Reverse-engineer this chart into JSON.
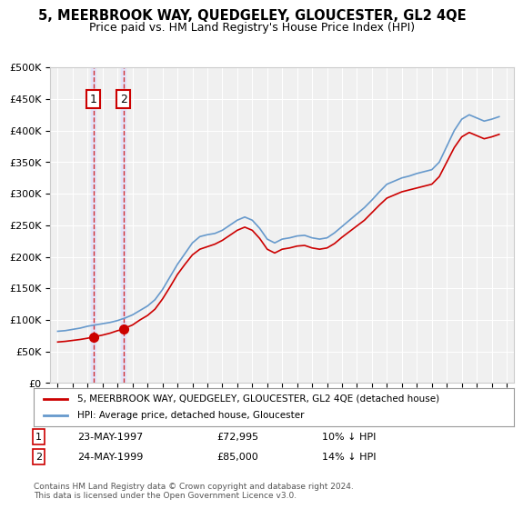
{
  "title": "5, MEERBROOK WAY, QUEDGELEY, GLOUCESTER, GL2 4QE",
  "subtitle": "Price paid vs. HM Land Registry's House Price Index (HPI)",
  "xlabel": "",
  "ylabel": "",
  "ylim": [
    0,
    500000
  ],
  "yticks": [
    0,
    50000,
    100000,
    150000,
    200000,
    250000,
    300000,
    350000,
    400000,
    450000,
    500000
  ],
  "background_color": "#ffffff",
  "plot_bg_color": "#f0f0f0",
  "legend_label_red": "5, MEERBROOK WAY, QUEDGELEY, GLOUCESTER, GL2 4QE (detached house)",
  "legend_label_blue": "HPI: Average price, detached house, Gloucester",
  "footnote": "Contains HM Land Registry data © Crown copyright and database right 2024.\nThis data is licensed under the Open Government Licence v3.0.",
  "purchase1_date": "23-MAY-1997",
  "purchase1_price": 72995,
  "purchase1_label": "1",
  "purchase1_hpi": "10% ↓ HPI",
  "purchase2_date": "24-MAY-1999",
  "purchase2_price": 85000,
  "purchase2_label": "2",
  "purchase2_hpi": "14% ↓ HPI",
  "red_color": "#cc0000",
  "blue_color": "#6699cc",
  "grid_color": "#ffffff",
  "vline_color": "#cc0000",
  "marker1_x": 1997.39,
  "marker1_y": 72995,
  "marker2_x": 1999.39,
  "marker2_y": 85000,
  "xmin": 1994.5,
  "xmax": 2025.5
}
